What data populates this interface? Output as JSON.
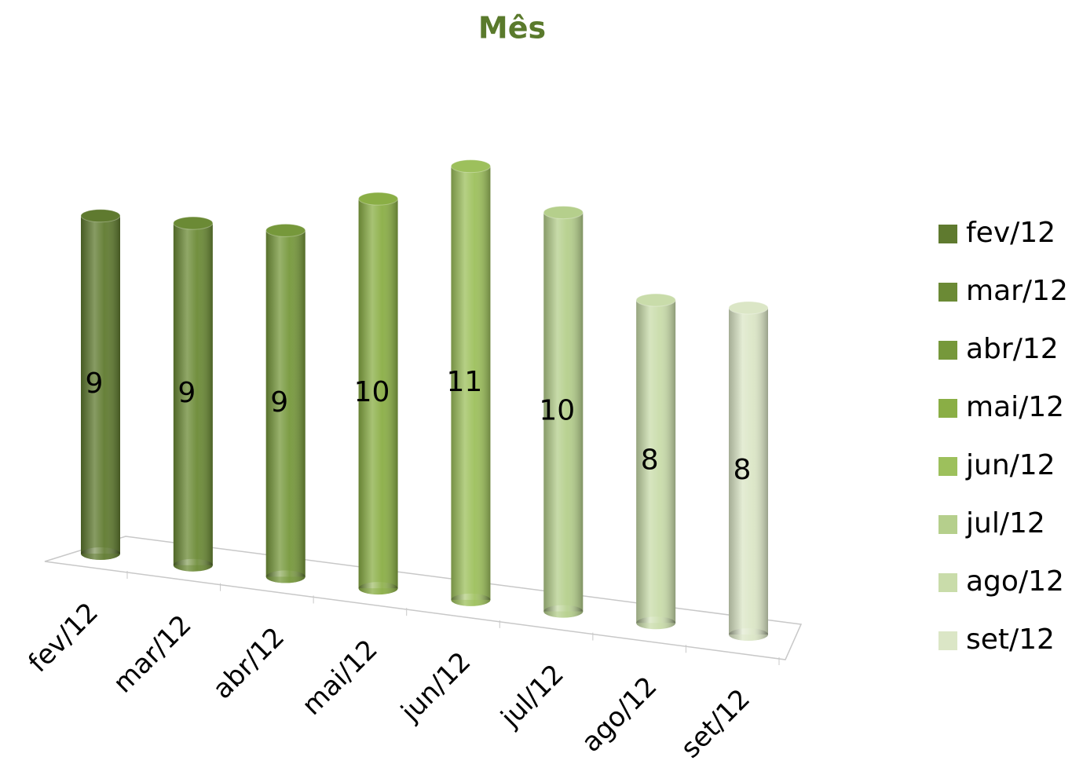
{
  "chart_data": {
    "type": "bar3d",
    "title": "Mês",
    "categories": [
      "fev/12",
      "mar/12",
      "abr/12",
      "mai/12",
      "jun/12",
      "jul/12",
      "ago/12",
      "set/12"
    ],
    "values": [
      9,
      9,
      9,
      10,
      11,
      10,
      8,
      8
    ],
    "colors": [
      "#5f7a2f",
      "#6b8a35",
      "#76983b",
      "#8aae45",
      "#9dc05c",
      "#b5cf8c",
      "#c9dcaa",
      "#dbe6c6"
    ],
    "title_color": "#5a7a2c"
  }
}
